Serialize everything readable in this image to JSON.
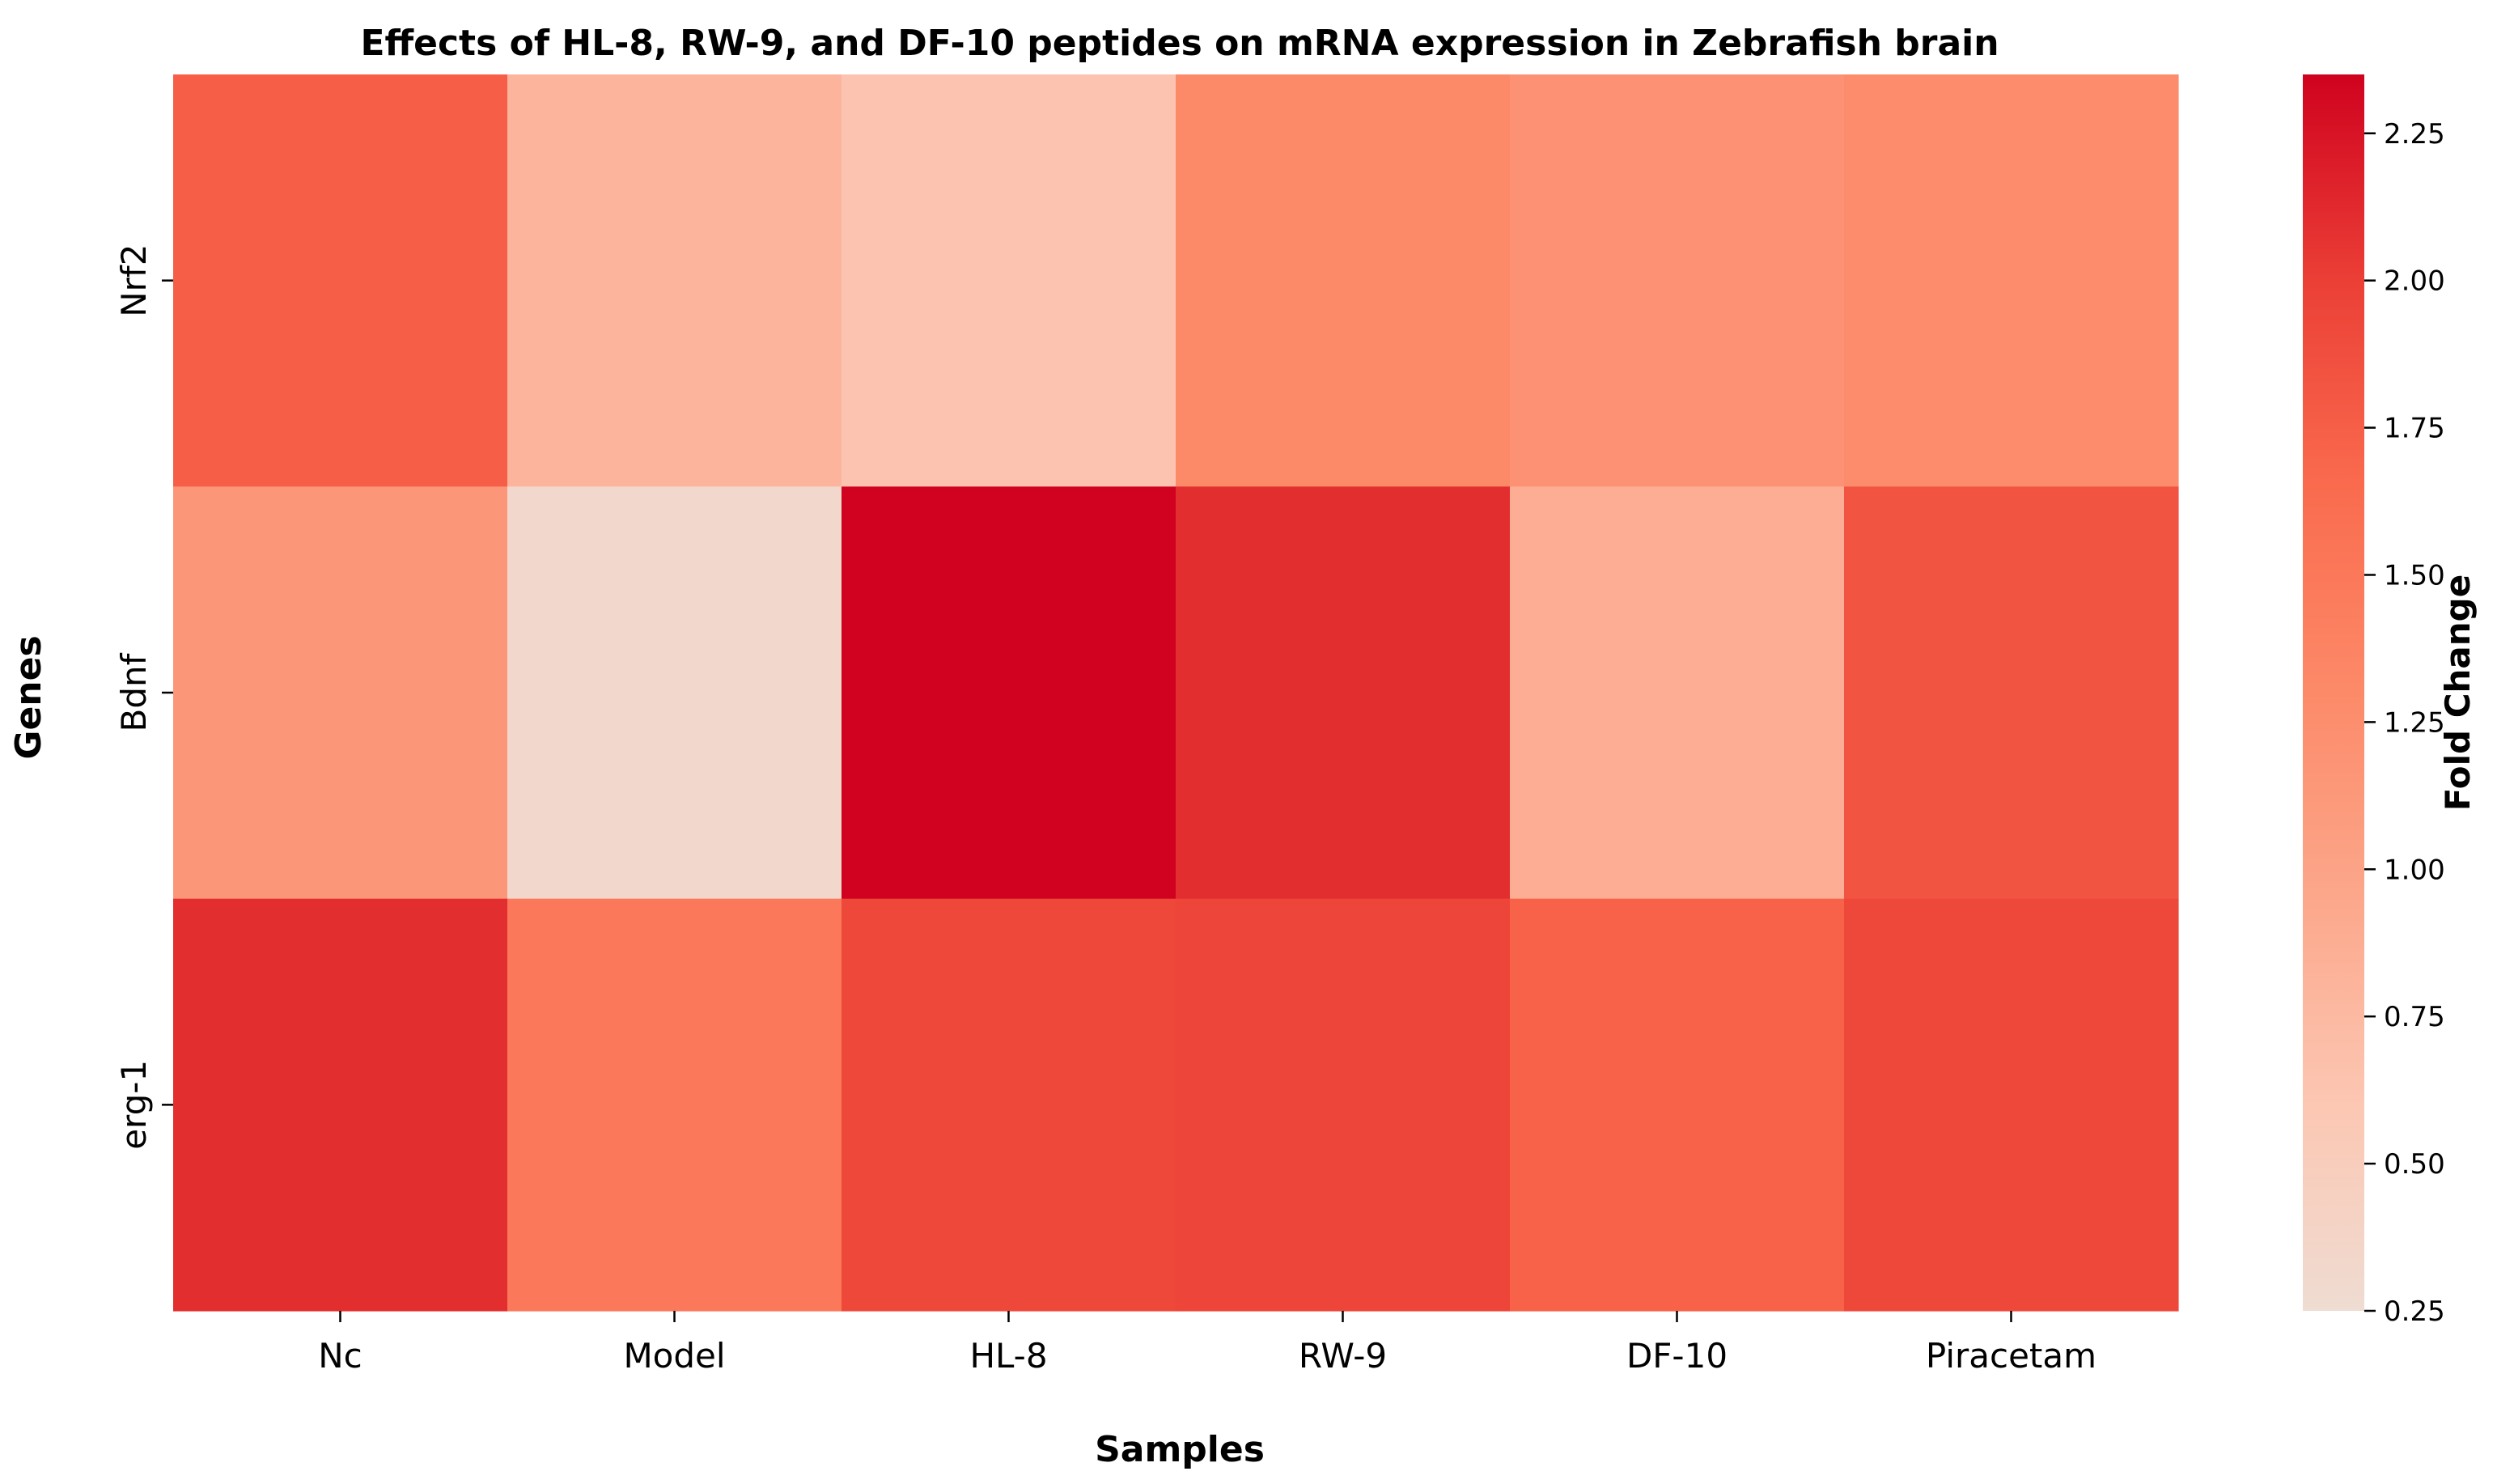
{
  "chart_data": {
    "type": "heatmap",
    "title": "Effects of HL-8, RW-9, and DF-10 peptides on mRNA expression in Zebrafish brain",
    "xlabel": "Samples",
    "ylabel": "Genes",
    "x_categories": [
      "Nc",
      "Model",
      "HL-8",
      "RW-9",
      "DF-10",
      "Piracetam"
    ],
    "y_categories": [
      "Nrf2",
      "Bdnf",
      "erg-1"
    ],
    "values": [
      [
        1.75,
        0.8,
        0.63,
        1.3,
        1.2,
        1.27
      ],
      [
        1.15,
        0.32,
        2.35,
        2.1,
        0.88,
        1.83
      ],
      [
        2.1,
        1.5,
        1.93,
        1.95,
        1.72,
        1.93
      ]
    ],
    "colorbar": {
      "label": "Fold Change",
      "range": [
        0.25,
        2.35
      ],
      "ticks": [
        "0.25",
        "0.50",
        "0.75",
        "1.00",
        "1.25",
        "1.50",
        "1.75",
        "2.00",
        "2.25"
      ],
      "colormap": [
        "#efdcd2",
        "#fcc7b3",
        "#fca78b",
        "#fc8a69",
        "#fa6b4e",
        "#eb3f36",
        "#d0021f"
      ]
    }
  }
}
